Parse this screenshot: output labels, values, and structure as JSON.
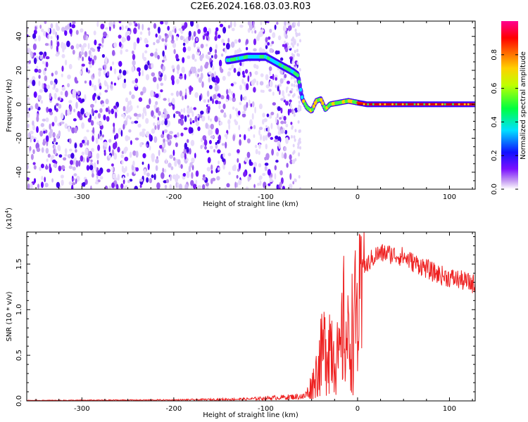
{
  "title": "C2E6.2024.168.03.03.R03",
  "chart_data": [
    {
      "type": "heatmap",
      "xlabel": "Height of straight line (km)",
      "ylabel": "Frequency (Hz)",
      "xlim": [
        -360,
        128
      ],
      "ylim": [
        -50,
        49
      ],
      "xticks": [
        -300,
        -200,
        -100,
        0,
        100
      ],
      "yticks": [
        -40,
        -20,
        0,
        20,
        40
      ],
      "colorbar": {
        "label": "Normalized spectral amplitude",
        "range": [
          0,
          1
        ],
        "ticks": [
          0.0,
          0.2,
          0.4,
          0.6,
          0.8
        ],
        "colors": [
          "#ffffff",
          "#b784f0",
          "#6000ff",
          "#0000ff",
          "#00ffff",
          "#00ff00",
          "#ffff00",
          "#ff8000",
          "#ff0000",
          "#ff0090"
        ]
      },
      "ridge": {
        "x": [
          -140,
          -120,
          -100,
          -90,
          -80,
          -70,
          -65,
          -60,
          -55,
          -50,
          -45,
          -40,
          -35,
          -30,
          -20,
          -10,
          0,
          10,
          20,
          40,
          60,
          80,
          100,
          128
        ],
        "y": [
          26,
          28,
          28,
          25,
          22,
          19,
          17,
          3,
          -2,
          -4,
          2,
          3,
          -3,
          0,
          1,
          2,
          1,
          0,
          0,
          0,
          0,
          0,
          0,
          0
        ]
      }
    },
    {
      "type": "line",
      "xlabel": "Height of straight line (km)",
      "ylabel": "SNR (10 * v/v)",
      "scale_note": "(x10",
      "scale_exp": "4",
      "xlim": [
        -360,
        128
      ],
      "ylim": [
        0,
        1.85
      ],
      "xticks": [
        -300,
        -200,
        -100,
        0,
        100
      ],
      "yticks": [
        0.0,
        0.5,
        1.0,
        1.5
      ],
      "color": "#ee2020",
      "envelope": {
        "x": [
          -360,
          -200,
          -120,
          -60,
          -55,
          -50,
          -45,
          -40,
          -35,
          -30,
          -25,
          -20,
          -15,
          -10,
          -5,
          0,
          5,
          10,
          20,
          30,
          40,
          50,
          60,
          70,
          80,
          90,
          100,
          110,
          120,
          128
        ],
        "y": [
          0.005,
          0.01,
          0.02,
          0.05,
          0.12,
          0.25,
          0.45,
          0.7,
          0.9,
          1.0,
          0.85,
          0.6,
          1.25,
          0.9,
          1.2,
          1.4,
          1.45,
          1.5,
          1.6,
          1.62,
          1.6,
          1.58,
          1.52,
          1.48,
          1.42,
          1.38,
          1.35,
          1.33,
          1.3,
          1.28
        ]
      }
    }
  ]
}
